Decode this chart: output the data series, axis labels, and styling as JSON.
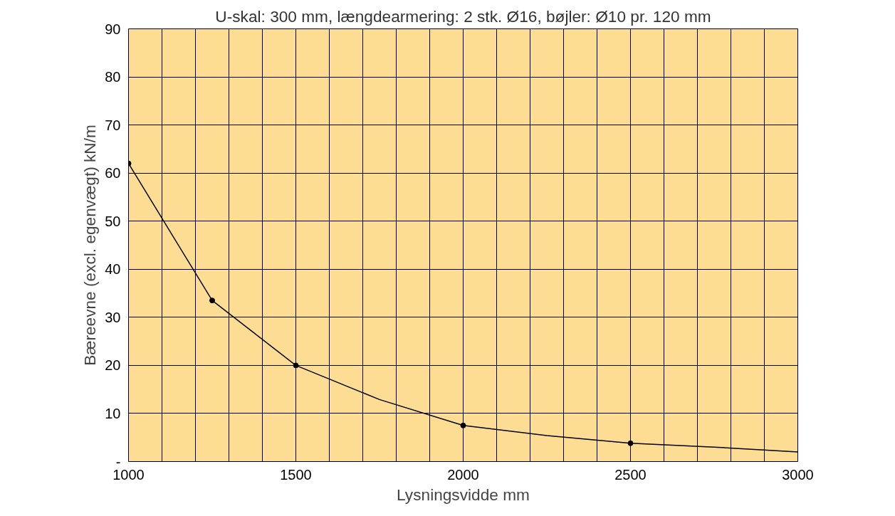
{
  "chart_data": {
    "type": "line",
    "title": "U-skal: 300 mm, længdearmering: 2 stk. Ø16, bøjler: Ø10 pr. 120 mm",
    "xlabel": "Lysningsvidde mm",
    "ylabel": "Bæreevne (excl. egenvægt) kN/m",
    "series": [
      {
        "color": "#000000",
        "marker": "none",
        "x": [
          1000,
          1250,
          1500,
          1750,
          2000,
          2250,
          2500,
          2750,
          3000
        ],
        "values": [
          62,
          33.5,
          20,
          12.9,
          7.5,
          5.4,
          3.8,
          3,
          2
        ]
      },
      {
        "type": "scatter",
        "color": "#000000",
        "marker": "circle",
        "x": [
          1000,
          1250,
          1500,
          2000,
          2500
        ],
        "values": [
          62,
          33.5,
          20,
          7.5,
          3.8
        ]
      }
    ],
    "xlim": [
      1000,
      3000
    ],
    "ylim": [
      0,
      90
    ],
    "xticks": [
      1000,
      {
        "value": 1100,
        "label": null
      },
      {
        "value": 1200,
        "label": null
      },
      {
        "value": 1300,
        "label": null
      },
      {
        "value": 1400,
        "label": null
      },
      1500,
      {
        "value": 1600,
        "label": null
      },
      {
        "value": 1700,
        "label": null
      },
      {
        "value": 1800,
        "label": null
      },
      {
        "value": 1900,
        "label": null
      },
      2000,
      {
        "value": 2100,
        "label": null
      },
      {
        "value": 2200,
        "label": null
      },
      {
        "value": 2300,
        "label": null
      },
      {
        "value": 2400,
        "label": null
      },
      2500,
      {
        "value": 2600,
        "label": null
      },
      {
        "value": 2700,
        "label": null
      },
      {
        "value": 2800,
        "label": null
      },
      {
        "value": 2900,
        "label": null
      },
      3000
    ],
    "yticks": [
      {
        "value": 0,
        "label": "-"
      },
      10,
      20,
      30,
      40,
      50,
      60,
      70,
      80,
      90
    ],
    "grid": true,
    "line_style": "solid"
  }
}
